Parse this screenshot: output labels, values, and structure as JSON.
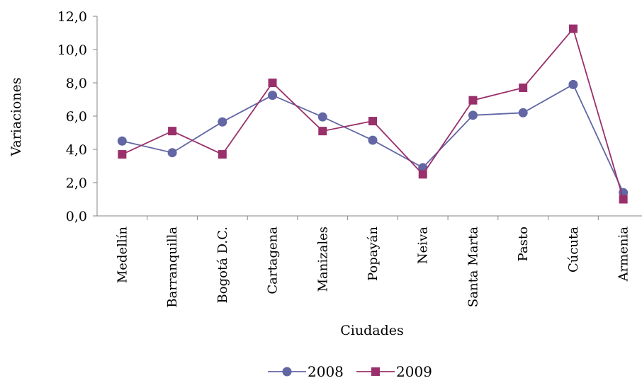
{
  "chart_data": {
    "type": "line",
    "categories": [
      "Medellín",
      "Barranquilla",
      "Bogotá D.C.",
      "Cartagena",
      "Manizales",
      "Popayán",
      "Neiva",
      "Santa Marta",
      "Pasto",
      "Cúcuta",
      "Armenia"
    ],
    "series": [
      {
        "name": "2008",
        "values": [
          4.5,
          3.8,
          5.65,
          7.25,
          5.95,
          4.55,
          2.9,
          6.05,
          6.2,
          7.9,
          1.4
        ],
        "color": "#6266a4",
        "marker": "circle"
      },
      {
        "name": "2009",
        "values": [
          3.7,
          5.1,
          3.7,
          8.0,
          5.1,
          5.7,
          2.5,
          6.95,
          7.7,
          11.25,
          1.0
        ],
        "color": "#99306b",
        "marker": "square"
      }
    ],
    "yticks": [
      "0,0",
      "2,0",
      "4,0",
      "6,0",
      "8,0",
      "10,0",
      "12,0"
    ],
    "ylim": [
      0,
      12
    ],
    "xlabel": "Ciudades",
    "ylabel": "Variaciones",
    "legend_position": "bottom",
    "grid": false
  }
}
